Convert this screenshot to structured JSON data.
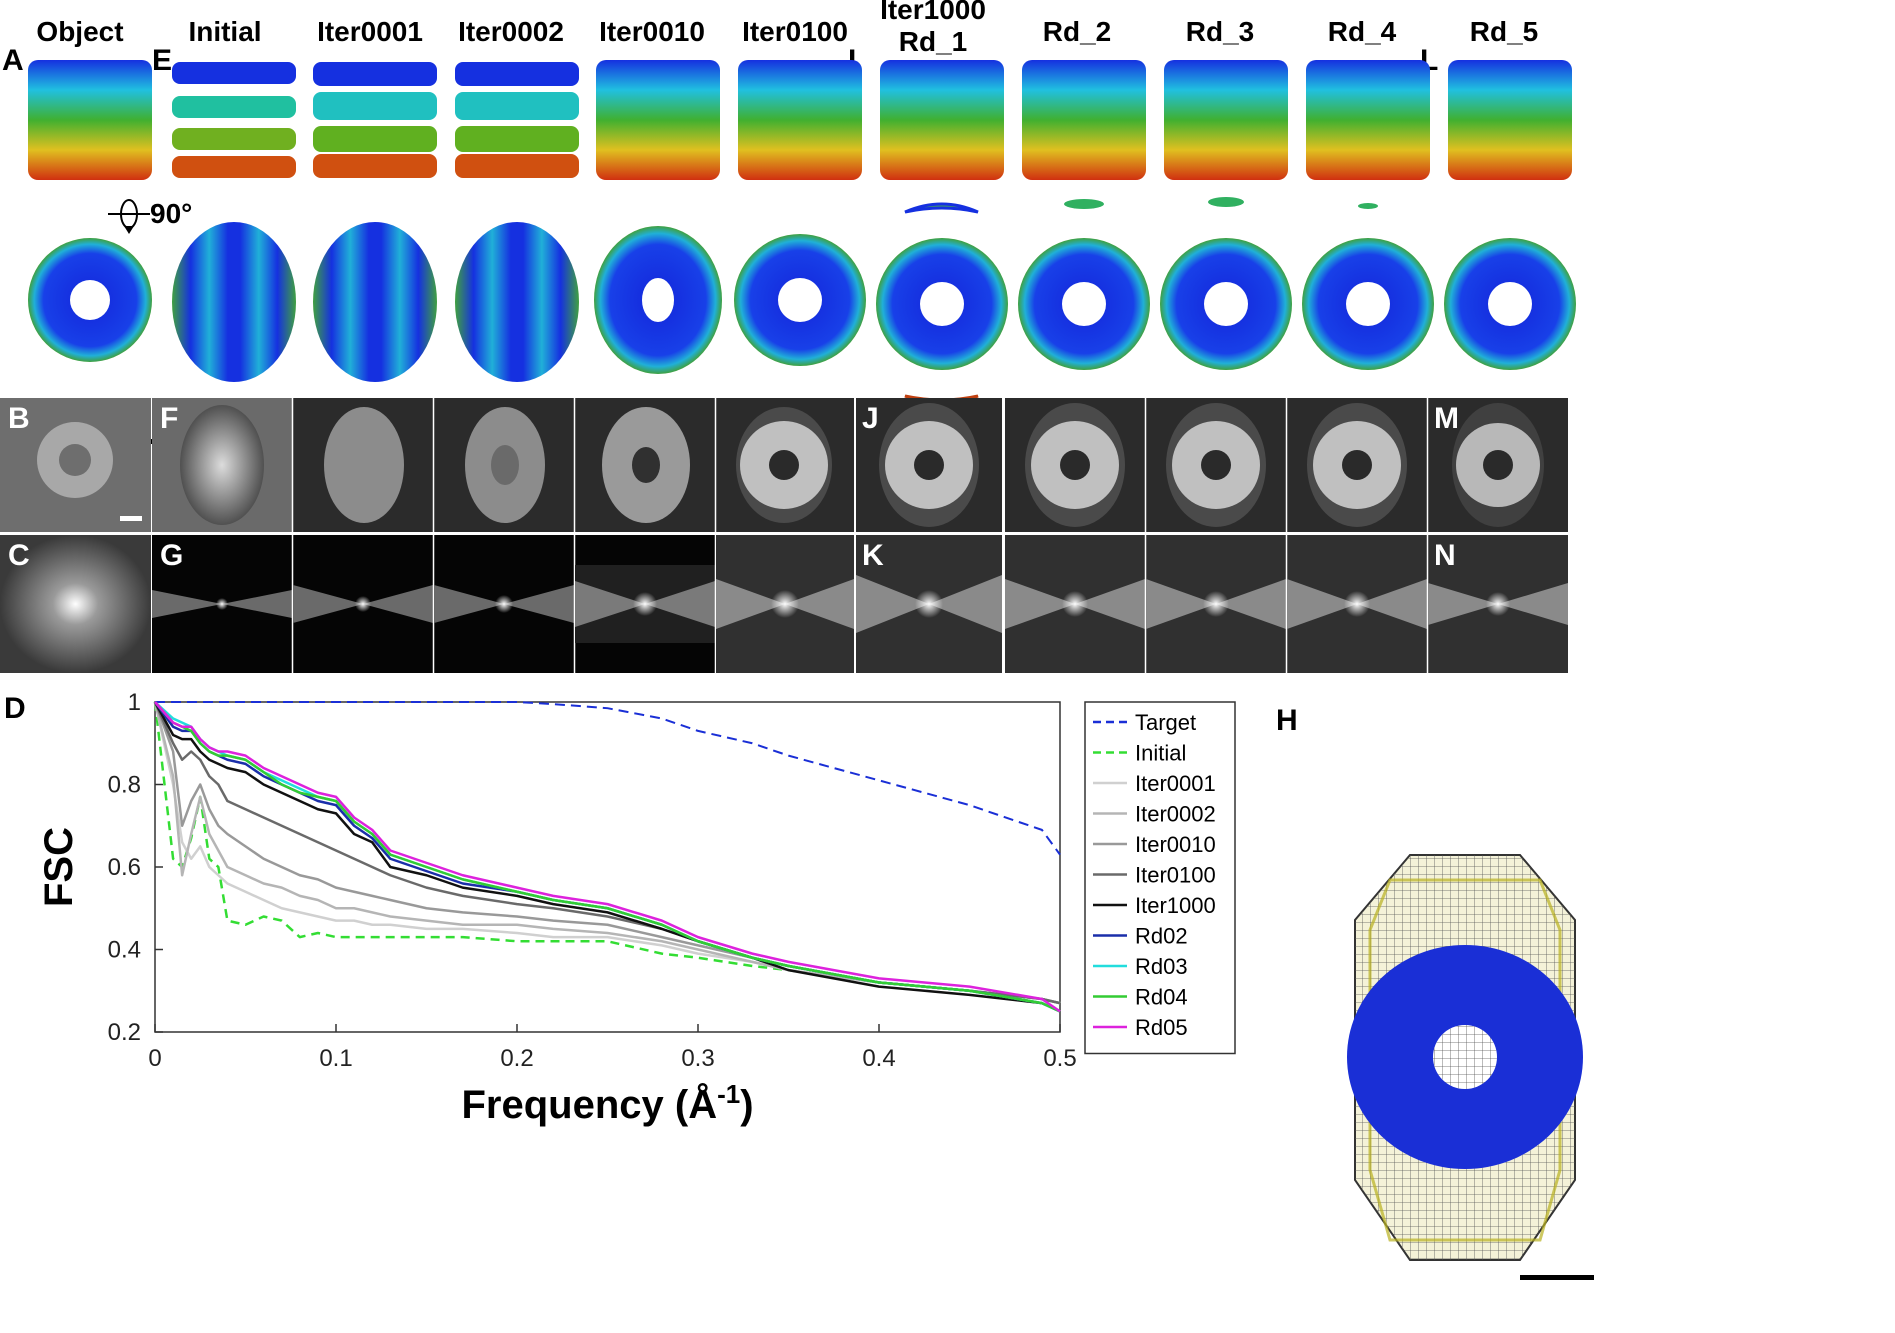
{
  "columns": [
    "Object",
    "Initial",
    "Iter0001",
    "Iter0002",
    "Iter0010",
    "Iter0100",
    "Iter1000",
    "Rd_1",
    "Rd_2",
    "Rd_3",
    "Rd_4",
    "Rd_5"
  ],
  "panel_labels": {
    "A": "A",
    "B": "B",
    "C": "C",
    "D": "D",
    "E": "E",
    "F": "F",
    "G": "G",
    "H": "H",
    "I": "I",
    "J": "J",
    "K": "K",
    "L": "L",
    "M": "M",
    "N": "N"
  },
  "rotation_label": "90°",
  "colors": {
    "blue": "#1030e0",
    "cyan": "#20c0e0",
    "green": "#40b020",
    "yellow": "#e0d020",
    "red": "#d03010"
  },
  "chart_data": {
    "type": "line",
    "title": "",
    "xlabel": "Frequency (Å",
    "xlabel_sup": "-1",
    "xlabel_close": ")",
    "ylabel": "FSC",
    "xlim": [
      0,
      0.5
    ],
    "ylim": [
      0.2,
      1
    ],
    "xticks": [
      "0",
      "0.1",
      "0.2",
      "0.3",
      "0.4",
      "0.5"
    ],
    "yticks": [
      "0.2",
      "0.4",
      "0.6",
      "0.8",
      "1"
    ],
    "x": [
      0,
      0.01,
      0.015,
      0.02,
      0.025,
      0.03,
      0.035,
      0.04,
      0.05,
      0.06,
      0.07,
      0.08,
      0.09,
      0.1,
      0.11,
      0.12,
      0.13,
      0.15,
      0.17,
      0.2,
      0.22,
      0.25,
      0.28,
      0.3,
      0.33,
      0.35,
      0.4,
      0.45,
      0.49,
      0.5
    ],
    "series": [
      {
        "name": "Target",
        "color": "#1a2fd6",
        "dash": "10,6",
        "width": 2,
        "values": [
          1,
          1,
          1,
          1,
          1,
          1,
          1,
          1,
          1,
          1,
          1,
          1,
          1,
          1,
          1,
          1,
          1,
          1,
          1,
          1,
          0.995,
          0.985,
          0.96,
          0.93,
          0.9,
          0.87,
          0.81,
          0.75,
          0.69,
          0.63
        ]
      },
      {
        "name": "Initial",
        "color": "#33dd33",
        "dash": "9,6",
        "width": 2.5,
        "values": [
          1,
          0.62,
          0.6,
          0.67,
          0.77,
          0.62,
          0.6,
          0.47,
          0.46,
          0.48,
          0.47,
          0.43,
          0.44,
          0.43,
          0.43,
          0.43,
          0.43,
          0.43,
          0.43,
          0.42,
          0.42,
          0.42,
          0.39,
          0.38,
          0.36,
          0.35,
          0.32,
          0.3,
          0.28,
          0.27
        ]
      },
      {
        "name": "Iter0001",
        "color": "#d0d0d0",
        "dash": "",
        "width": 2.5,
        "values": [
          1,
          0.8,
          0.66,
          0.62,
          0.65,
          0.6,
          0.58,
          0.56,
          0.54,
          0.52,
          0.5,
          0.49,
          0.48,
          0.47,
          0.47,
          0.46,
          0.46,
          0.45,
          0.45,
          0.44,
          0.43,
          0.43,
          0.41,
          0.39,
          0.37,
          0.35,
          0.32,
          0.3,
          0.28,
          0.27
        ]
      },
      {
        "name": "Iter0002",
        "color": "#b5b5b5",
        "dash": "",
        "width": 2.5,
        "values": [
          1,
          0.82,
          0.58,
          0.68,
          0.77,
          0.68,
          0.64,
          0.6,
          0.58,
          0.56,
          0.55,
          0.53,
          0.52,
          0.5,
          0.5,
          0.49,
          0.48,
          0.47,
          0.46,
          0.46,
          0.45,
          0.44,
          0.42,
          0.4,
          0.37,
          0.35,
          0.32,
          0.3,
          0.28,
          0.27
        ]
      },
      {
        "name": "Iter0010",
        "color": "#999999",
        "dash": "",
        "width": 2.5,
        "values": [
          1,
          0.88,
          0.7,
          0.76,
          0.8,
          0.74,
          0.7,
          0.68,
          0.65,
          0.62,
          0.6,
          0.58,
          0.57,
          0.55,
          0.54,
          0.53,
          0.52,
          0.5,
          0.49,
          0.48,
          0.47,
          0.46,
          0.43,
          0.41,
          0.38,
          0.36,
          0.32,
          0.3,
          0.28,
          0.27
        ]
      },
      {
        "name": "Iter0100",
        "color": "#6a6a6a",
        "dash": "",
        "width": 2.5,
        "values": [
          1,
          0.9,
          0.86,
          0.88,
          0.86,
          0.82,
          0.8,
          0.76,
          0.74,
          0.72,
          0.7,
          0.68,
          0.66,
          0.64,
          0.62,
          0.6,
          0.58,
          0.55,
          0.53,
          0.51,
          0.5,
          0.48,
          0.45,
          0.42,
          0.38,
          0.36,
          0.32,
          0.3,
          0.28,
          0.27
        ]
      },
      {
        "name": "Iter1000",
        "color": "#111111",
        "dash": "",
        "width": 2.5,
        "values": [
          1,
          0.92,
          0.91,
          0.91,
          0.88,
          0.86,
          0.85,
          0.84,
          0.83,
          0.8,
          0.78,
          0.76,
          0.74,
          0.73,
          0.68,
          0.66,
          0.6,
          0.58,
          0.55,
          0.53,
          0.51,
          0.49,
          0.45,
          0.42,
          0.38,
          0.35,
          0.31,
          0.29,
          0.27,
          0.25
        ]
      },
      {
        "name": "Rd02",
        "color": "#1a2faa",
        "dash": "",
        "width": 2.5,
        "values": [
          1,
          0.94,
          0.93,
          0.93,
          0.9,
          0.88,
          0.87,
          0.86,
          0.85,
          0.82,
          0.8,
          0.78,
          0.76,
          0.75,
          0.7,
          0.67,
          0.62,
          0.59,
          0.56,
          0.54,
          0.52,
          0.5,
          0.46,
          0.42,
          0.38,
          0.36,
          0.32,
          0.3,
          0.27,
          0.25
        ]
      },
      {
        "name": "Rd03",
        "color": "#22dddd",
        "dash": "",
        "width": 2.5,
        "values": [
          1,
          0.96,
          0.95,
          0.94,
          0.91,
          0.89,
          0.88,
          0.87,
          0.86,
          0.83,
          0.81,
          0.79,
          0.77,
          0.76,
          0.71,
          0.68,
          0.63,
          0.6,
          0.57,
          0.54,
          0.52,
          0.5,
          0.46,
          0.42,
          0.38,
          0.36,
          0.32,
          0.3,
          0.27,
          0.25
        ]
      },
      {
        "name": "Rd04",
        "color": "#33cc33",
        "dash": "",
        "width": 2.5,
        "values": [
          1,
          0.95,
          0.94,
          0.93,
          0.9,
          0.88,
          0.87,
          0.87,
          0.86,
          0.83,
          0.8,
          0.78,
          0.77,
          0.76,
          0.71,
          0.68,
          0.63,
          0.6,
          0.57,
          0.54,
          0.52,
          0.5,
          0.46,
          0.42,
          0.38,
          0.36,
          0.32,
          0.3,
          0.27,
          0.25
        ]
      },
      {
        "name": "Rd05",
        "color": "#dd22dd",
        "dash": "",
        "width": 2.5,
        "values": [
          1,
          0.95,
          0.94,
          0.94,
          0.91,
          0.89,
          0.88,
          0.88,
          0.87,
          0.84,
          0.82,
          0.8,
          0.78,
          0.77,
          0.72,
          0.69,
          0.64,
          0.61,
          0.58,
          0.55,
          0.53,
          0.51,
          0.47,
          0.43,
          0.39,
          0.37,
          0.33,
          0.31,
          0.28,
          0.25
        ]
      }
    ]
  }
}
